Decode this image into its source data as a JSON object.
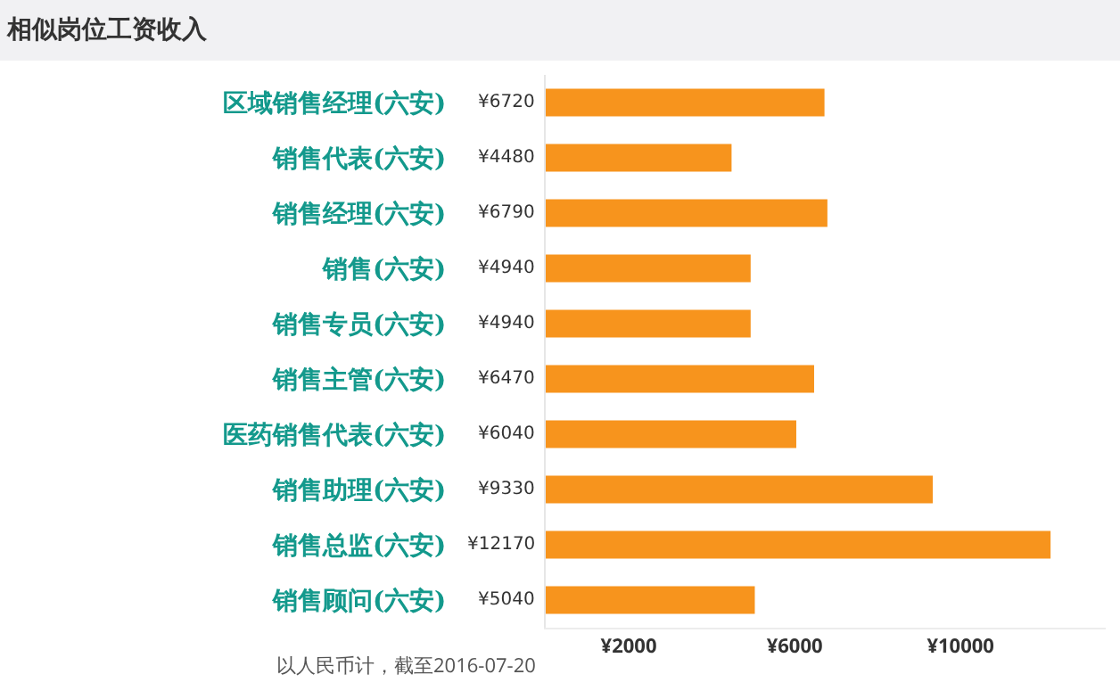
{
  "chart_data": {
    "type": "bar",
    "orientation": "horizontal",
    "title": "相似岗位工资收入",
    "categories": [
      "区域销售经理(六安)",
      "销售代表(六安)",
      "销售经理(六安)",
      "销售(六安)",
      "销售专员(六安)",
      "销售主管(六安)",
      "医药销售代表(六安)",
      "销售助理(六安)",
      "销售总监(六安)",
      "销售顾问(六安)"
    ],
    "values": [
      6720,
      4480,
      6790,
      4940,
      4940,
      6470,
      6040,
      9330,
      12170,
      5040
    ],
    "value_labels": [
      "¥6720",
      "¥4480",
      "¥6790",
      "¥4940",
      "¥4940",
      "¥6470",
      "¥6040",
      "¥9330",
      "¥12170",
      "¥5040"
    ],
    "color": "#f7941d",
    "xlim": [
      0,
      13500
    ],
    "xticks": [
      {
        "value": 2000,
        "label": "¥2000"
      },
      {
        "value": 6000,
        "label": "¥6000"
      },
      {
        "value": 10000,
        "label": "¥10000"
      }
    ],
    "grid": false,
    "legend": false,
    "annotations": [
      "以人民币计，截至2016-07-20"
    ]
  }
}
